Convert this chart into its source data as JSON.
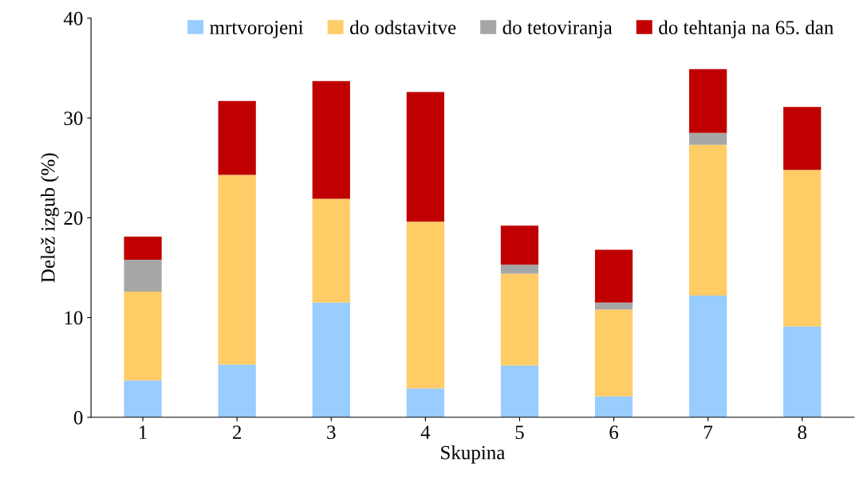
{
  "chart_data": {
    "type": "bar",
    "stacked": true,
    "xlabel": "Skupina",
    "ylabel": "Delež izgub (%)",
    "categories": [
      "1",
      "2",
      "3",
      "4",
      "5",
      "6",
      "7",
      "8"
    ],
    "series": [
      {
        "name": "mrtvorojeni",
        "color": "#99ccff",
        "values": [
          3.7,
          5.3,
          11.5,
          2.9,
          5.2,
          2.1,
          12.2,
          9.1
        ]
      },
      {
        "name": "do odstavitve",
        "color": "#ffcc66",
        "values": [
          8.9,
          19.0,
          10.4,
          16.7,
          9.2,
          8.7,
          15.1,
          15.7
        ]
      },
      {
        "name": "do tetoviranja",
        "color": "#a6a6a6",
        "values": [
          3.2,
          null,
          null,
          null,
          0.9,
          0.7,
          1.2,
          null
        ]
      },
      {
        "name": "do tehtanja na 65. dan",
        "color": "#c00000",
        "values": [
          2.3,
          7.4,
          11.8,
          13.0,
          3.9,
          5.3,
          6.4,
          6.3
        ]
      }
    ],
    "ylim": [
      0,
      40
    ],
    "yticks": [
      0,
      10,
      20,
      30,
      40
    ],
    "grid": false,
    "legend": "top"
  }
}
